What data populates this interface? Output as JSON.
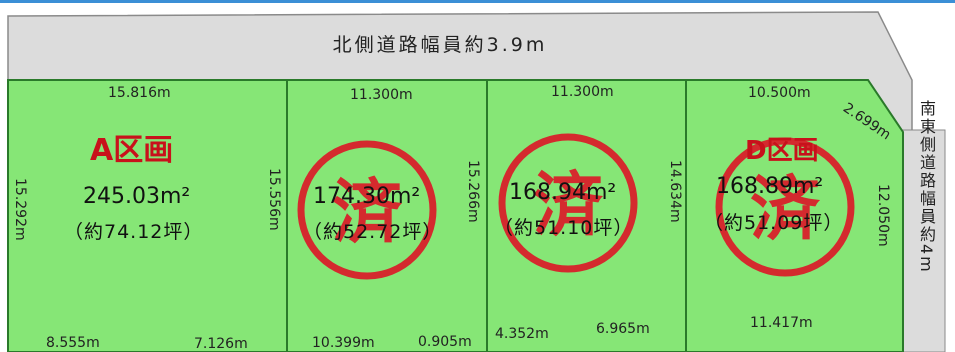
{
  "colors": {
    "road": "#dcdcdc",
    "lot_fill": "#86e676",
    "lot_stroke": "#2a7a2a",
    "lot_name_red": "#c8111b",
    "stamp_red": "#d42a2e",
    "top_bar": "#3b8fd6"
  },
  "roads": {
    "north": "北側道路幅員約3.9m",
    "southeast": "南東側道路幅員約4m"
  },
  "stamp_char": "済",
  "lots": [
    {
      "name": "A区画",
      "area": "245.03m²",
      "tsubo": "（約74.12坪）",
      "sold": false,
      "top": "15.816m",
      "left": "15.292m",
      "right": "15.556m",
      "bottom_a": "8.555m",
      "bottom_b": "7.126m"
    },
    {
      "name": "",
      "area": "174.30m²",
      "tsubo": "（約52.72坪）",
      "sold": true,
      "top": "11.300m",
      "right": "15.266m",
      "bottom_a": "10.399m",
      "bottom_b": "0.905m"
    },
    {
      "name": "",
      "area": "168.94m²",
      "tsubo": "（約51.10坪）",
      "sold": true,
      "top": "11.300m",
      "right": "14.634m",
      "bottom_a": "4.352m",
      "bottom_b": "6.965m"
    },
    {
      "name": "D区画",
      "area": "168.89m²",
      "tsubo": "（約51.09坪）",
      "sold": true,
      "top": "10.500m",
      "corner": "2.699m",
      "right": "12.050m",
      "bottom": "11.417m"
    }
  ]
}
